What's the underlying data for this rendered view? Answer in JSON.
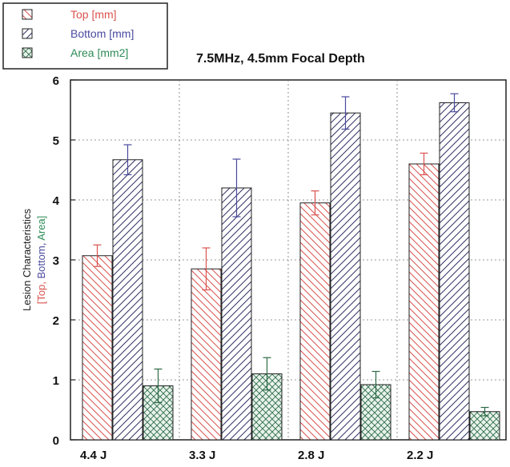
{
  "chart_data": {
    "type": "bar",
    "title": "7.5MHz, 4.5mm Focal Depth",
    "ylabel_parts": [
      {
        "text": "Lesion Characteristics",
        "color": "#222222"
      },
      {
        "text": "[Top, ",
        "color": "#d9534f"
      },
      {
        "text": "Bottom, ",
        "color": "#4a4aa0"
      },
      {
        "text": "Area]",
        "color": "#2e8b57"
      }
    ],
    "xlabel": "",
    "categories": [
      "4.4 J",
      "3.3 J",
      "2.8 J",
      "2.2 J"
    ],
    "ylim": [
      0,
      6
    ],
    "yticks": [
      "0",
      "1",
      "2",
      "3",
      "4",
      "5",
      "6"
    ],
    "grid": true,
    "legend_position": "top-left",
    "series": [
      {
        "name": "Top [mm]",
        "color": "#d9534f",
        "pattern": "hatch-back",
        "values": [
          3.07,
          2.85,
          3.95,
          4.6
        ],
        "errors": [
          0.18,
          0.35,
          0.2,
          0.18
        ]
      },
      {
        "name": "Bottom [mm]",
        "color": "#4a4aa0",
        "pattern": "hatch-forward",
        "values": [
          4.67,
          4.2,
          5.45,
          5.62
        ],
        "errors": [
          0.25,
          0.48,
          0.27,
          0.15
        ]
      },
      {
        "name": "Area [mm2]",
        "color": "#2e8b57",
        "pattern": "crosshatch",
        "values": [
          0.9,
          1.1,
          0.92,
          0.47
        ],
        "errors": [
          0.28,
          0.27,
          0.22,
          0.07
        ]
      }
    ]
  }
}
